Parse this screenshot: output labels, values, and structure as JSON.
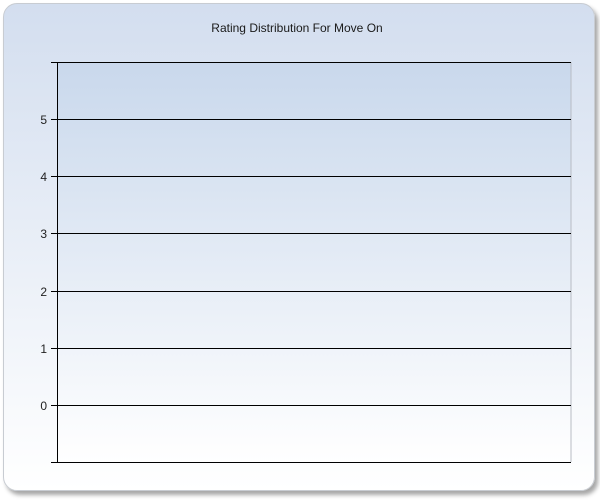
{
  "chart_data": {
    "type": "bar",
    "title": "Rating Distribution For Move On",
    "categories": [],
    "series": [],
    "xlabel": "",
    "ylabel": "",
    "ylim": [
      -1,
      6
    ],
    "yticks": [
      "0",
      "1",
      "2",
      "3",
      "4",
      "5"
    ],
    "grid": true,
    "colors": {
      "panel_top": "#d3deef",
      "plot_top": "#c9d8ec",
      "gridline": "#000000"
    }
  }
}
